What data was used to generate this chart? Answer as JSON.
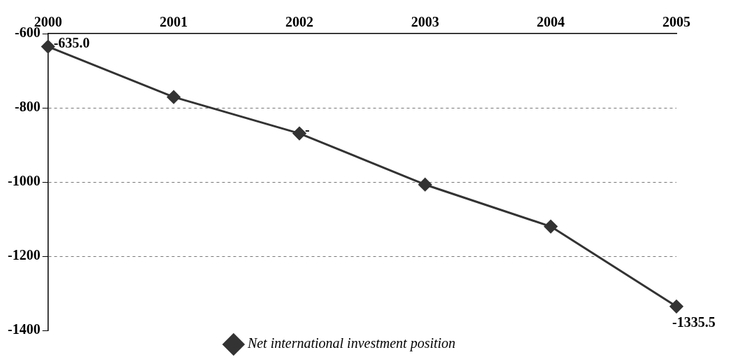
{
  "chart_data": {
    "type": "line",
    "categories": [
      "2000",
      "2001",
      "2002",
      "2003",
      "2004",
      "2005"
    ],
    "series": [
      {
        "name": "Net international investment position",
        "color": "#333333",
        "values": [
          -635.0,
          -771,
          -869,
          -1007,
          -1120,
          -1335.5
        ],
        "value_labels": [
          "-635.0",
          null,
          "-",
          null,
          null,
          "-1335.5"
        ]
      }
    ],
    "ylim": [
      -1400,
      -600
    ],
    "yticks": [
      -1400,
      -1200,
      -1000,
      -800,
      -600
    ],
    "grid": "y",
    "legend": "bottom",
    "marker": "diamond",
    "line_style": "solid"
  }
}
